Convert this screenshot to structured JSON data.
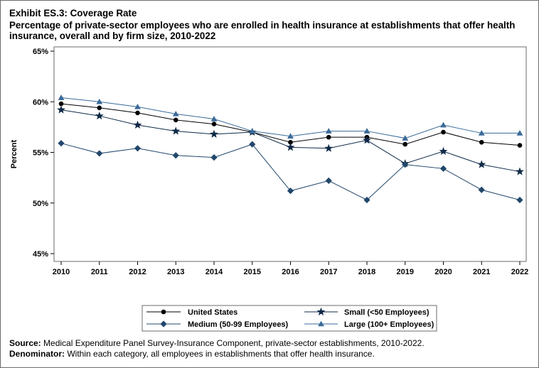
{
  "header": {
    "exhibit": "Exhibit ES.3: Coverage Rate",
    "subtitle_line1": "Percentage of private-sector employees who are enrolled in health insurance at establishments that offer health",
    "subtitle_line2": "insurance, overall and by firm size, 2010-2022"
  },
  "footer": {
    "source_label": "Source:",
    "source_text": "Medical Expenditure Panel Survey-Insurance Component, private-sector establishments, 2010-2022.",
    "denominator_label": "Denominator:",
    "denominator_text": "Within each category, all employees in establishments that offer health insurance."
  },
  "colors": {
    "united_states": "#000000",
    "small": "#0f2a47",
    "medium": "#21476b",
    "large": "#3a6a99",
    "frame": "#6b6b6b"
  },
  "chart_data": {
    "type": "line",
    "title": "Exhibit ES.3: Coverage Rate",
    "xlabel": "",
    "ylabel": "Percent",
    "x": [
      2010,
      2011,
      2012,
      2013,
      2014,
      2015,
      2016,
      2017,
      2018,
      2019,
      2020,
      2021,
      2022
    ],
    "ylim": [
      45,
      65
    ],
    "yticks": [
      45,
      50,
      55,
      60,
      65
    ],
    "ytick_labels": [
      "45%",
      "50%",
      "55%",
      "60%",
      "65%"
    ],
    "grid": false,
    "legend_position": "bottom",
    "series": [
      {
        "name": "United States",
        "marker": "circle-icon",
        "color": "#000000",
        "values": [
          59.8,
          59.4,
          58.9,
          58.2,
          57.8,
          57.0,
          56.0,
          56.5,
          56.5,
          55.8,
          57.0,
          56.0,
          55.7
        ]
      },
      {
        "name": "Small (<50 Employees)",
        "marker": "star-icon",
        "color": "#0f2a47",
        "values": [
          59.2,
          58.6,
          57.7,
          57.1,
          56.8,
          57.0,
          55.5,
          55.4,
          56.2,
          53.9,
          55.1,
          53.8,
          53.1
        ]
      },
      {
        "name": "Medium (50-99 Employees)",
        "marker": "diamond-icon",
        "color": "#21476b",
        "values": [
          55.9,
          54.9,
          55.4,
          54.7,
          54.5,
          55.8,
          51.2,
          52.2,
          50.3,
          53.8,
          53.4,
          51.3,
          50.3
        ]
      },
      {
        "name": "Large (100+ Employees)",
        "marker": "triangle-icon",
        "color": "#3a6a99",
        "values": [
          60.4,
          60.0,
          59.5,
          58.8,
          58.3,
          57.1,
          56.6,
          57.1,
          57.1,
          56.4,
          57.7,
          56.9,
          56.9
        ]
      }
    ]
  }
}
